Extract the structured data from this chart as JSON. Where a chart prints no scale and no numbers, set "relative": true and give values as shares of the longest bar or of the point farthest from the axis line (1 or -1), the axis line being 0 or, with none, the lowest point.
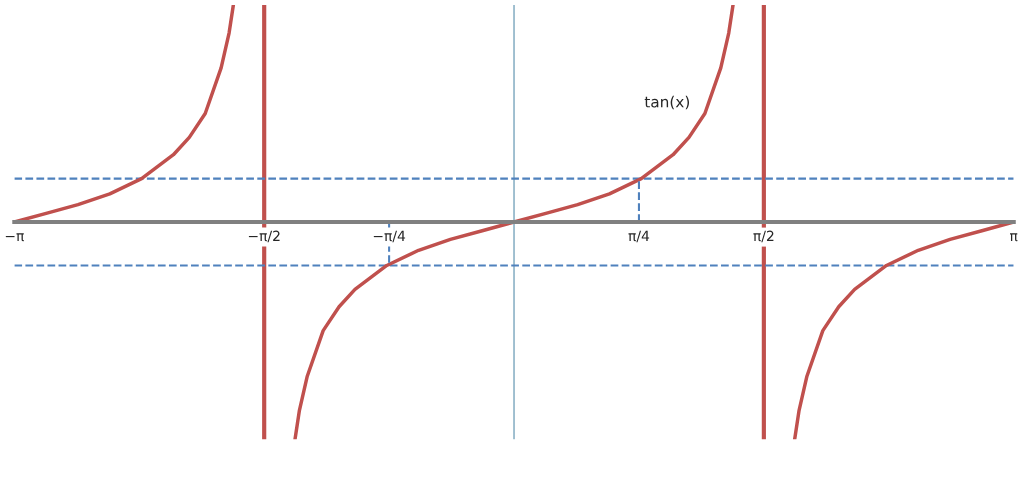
{
  "chart_data": {
    "type": "line",
    "relative": true,
    "tick_labels": "x",
    "line_style": "solid",
    "marker": "none",
    "xlim": [
      -3.1416,
      3.1416
    ],
    "xticks": [
      {
        "value": -3.1416,
        "label": "−π"
      },
      {
        "value": -1.5708,
        "label": "−π/2"
      },
      {
        "value": -0.7854,
        "label": "−π/4"
      },
      {
        "value": 0.7854,
        "label": "π/4"
      },
      {
        "value": 1.5708,
        "label": "π/2"
      },
      {
        "value": 3.1416,
        "label": "π"
      }
    ],
    "series": [
      {
        "color": "#c0504d",
        "x": [
          -3.1416,
          -2.9416,
          -2.7416,
          -2.5416,
          -2.3416,
          -2.1416,
          -2.0416,
          -1.9416,
          -1.8416,
          -1.7916,
          -1.7646
        ],
        "values": [
          0,
          0.04,
          0.08,
          0.13,
          0.2,
          0.31,
          0.39,
          0.5,
          0.71,
          0.87,
          1
        ]
      },
      {
        "color": "#c0504d",
        "x": [
          -1.377,
          -1.35,
          -1.3,
          -1.2,
          -1.1,
          -1.0,
          -0.8,
          -0.6,
          -0.4,
          -0.2,
          0,
          0.2,
          0.4,
          0.6,
          0.8,
          1.0,
          1.1,
          1.2,
          1.3,
          1.35,
          1.377
        ],
        "values": [
          -1,
          -0.87,
          -0.71,
          -0.5,
          -0.39,
          -0.31,
          -0.2,
          -0.13,
          -0.08,
          -0.04,
          0,
          0.04,
          0.08,
          0.13,
          0.2,
          0.31,
          0.39,
          0.5,
          0.71,
          0.87,
          1
        ]
      },
      {
        "color": "#c0504d",
        "x": [
          1.7646,
          1.7916,
          1.8416,
          1.9416,
          2.0416,
          2.1416,
          2.3416,
          2.5416,
          2.7416,
          2.9416,
          3.1416
        ],
        "values": [
          -1,
          -0.87,
          -0.71,
          -0.5,
          -0.39,
          -0.31,
          -0.2,
          -0.13,
          -0.08,
          -0.04,
          0
        ]
      },
      {
        "color": "#4f81bd",
        "line_style": "dashed",
        "x": [
          -0.7854,
          -0.7854
        ],
        "values": [
          0,
          -0.2
        ]
      },
      {
        "color": "#4f81bd",
        "line_style": "dashed",
        "x": [
          0.7854,
          0.7854
        ],
        "values": [
          0,
          0.2
        ]
      }
    ],
    "ref_lines": [
      {
        "axis": "x",
        "value": -1.5708,
        "color": "#c0504d",
        "line_style": "solid"
      },
      {
        "axis": "x",
        "value": 1.5708,
        "color": "#c0504d",
        "line_style": "solid"
      },
      {
        "axis": "x",
        "value": 0,
        "color": "#8fb4c8",
        "line_style": "solid"
      },
      {
        "axis": "y",
        "value": 0.2,
        "color": "#4f81bd",
        "line_style": "dashed"
      },
      {
        "axis": "y",
        "value": -0.2,
        "color": "#4f81bd",
        "line_style": "dashed"
      }
    ],
    "annotations": [
      "tan(x)"
    ]
  }
}
